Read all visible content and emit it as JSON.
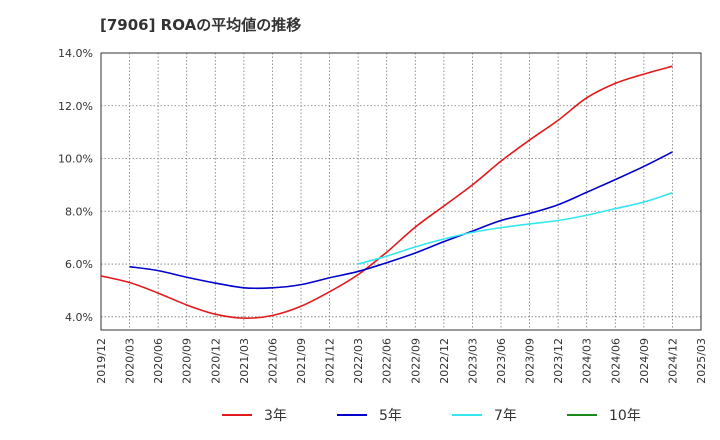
{
  "chart_data": {
    "type": "line",
    "title": "[7906]  ROAの平均値の推移",
    "xlabel": "",
    "ylabel": "",
    "ylim": [
      3.5,
      14.0
    ],
    "y_ticks": [
      "4.0%",
      "6.0%",
      "8.0%",
      "10.0%",
      "12.0%",
      "14.0%"
    ],
    "y_tick_values": [
      4,
      6,
      8,
      10,
      12,
      14
    ],
    "x": [
      "2019/12",
      "2020/03",
      "2020/06",
      "2020/09",
      "2020/12",
      "2021/03",
      "2021/06",
      "2021/09",
      "2021/12",
      "2022/03",
      "2022/06",
      "2022/09",
      "2022/12",
      "2023/03",
      "2023/06",
      "2023/09",
      "2023/12",
      "2024/03",
      "2024/06",
      "2024/09",
      "2024/12",
      "2025/03"
    ],
    "grid": true,
    "legend_position": "bottom",
    "series": [
      {
        "name": "3年",
        "color": "#e31a1c",
        "values": [
          5.55,
          5.3,
          4.9,
          4.45,
          4.1,
          3.95,
          4.05,
          4.4,
          4.95,
          5.6,
          6.45,
          7.4,
          8.2,
          9.0,
          9.9,
          10.7,
          11.45,
          12.3,
          12.85,
          13.2,
          13.5,
          null
        ]
      },
      {
        "name": "5年",
        "color": "#0000cc",
        "values": [
          null,
          5.9,
          5.75,
          5.5,
          5.28,
          5.1,
          5.1,
          5.22,
          5.48,
          5.72,
          6.05,
          6.42,
          6.85,
          7.25,
          7.65,
          7.92,
          8.25,
          8.72,
          9.2,
          9.7,
          10.25,
          null
        ]
      },
      {
        "name": "7年",
        "color": "#33e6f0",
        "values": [
          null,
          null,
          null,
          null,
          null,
          null,
          null,
          null,
          null,
          6.0,
          6.3,
          6.65,
          6.95,
          7.2,
          7.38,
          7.52,
          7.65,
          7.85,
          8.1,
          8.35,
          8.7,
          null
        ]
      },
      {
        "name": "10年",
        "color": "#1a8a1a",
        "values": [
          null,
          null,
          null,
          null,
          null,
          null,
          null,
          null,
          null,
          null,
          null,
          null,
          null,
          null,
          null,
          null,
          null,
          null,
          null,
          null,
          null,
          null
        ]
      }
    ]
  }
}
